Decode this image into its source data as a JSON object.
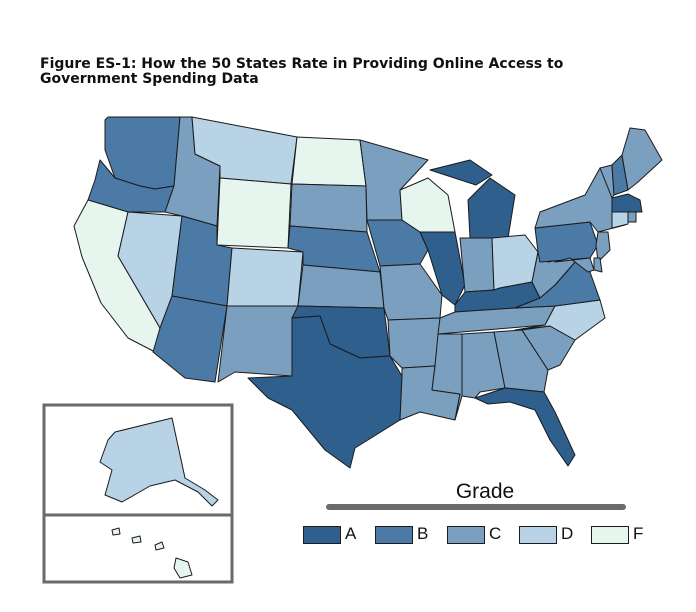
{
  "title": "Figure ES-1: How the 50 States Rate in Providing Online Access to Government Spending Data",
  "legend": {
    "title": "Grade",
    "items": [
      {
        "grade": "A",
        "label": "A",
        "color": "#2f5f8c"
      },
      {
        "grade": "B",
        "label": "B",
        "color": "#4b7aa6"
      },
      {
        "grade": "C",
        "label": "C",
        "color": "#7a9fbf"
      },
      {
        "grade": "D",
        "label": "D",
        "color": "#b8d2e6"
      },
      {
        "grade": "F",
        "label": "F",
        "color": "#e6f6ef"
      }
    ]
  },
  "states": {
    "WA": "B",
    "OR": "B",
    "CA": "F",
    "NV": "D",
    "ID": "C",
    "MT": "D",
    "WY": "F",
    "UT": "B",
    "AZ": "B",
    "CO": "D",
    "NM": "C",
    "ND": "F",
    "SD": "C",
    "NE": "B",
    "KS": "C",
    "OK": "A",
    "TX": "A",
    "MN": "C",
    "IA": "B",
    "MO": "C",
    "AR": "C",
    "LA": "C",
    "WI": "F",
    "IL": "A",
    "MI": "A",
    "IN": "C",
    "OH": "D",
    "KY": "A",
    "TN": "C",
    "MS": "C",
    "AL": "C",
    "GA": "C",
    "FL": "A",
    "SC": "C",
    "NC": "D",
    "VA": "B",
    "WV": "C",
    "PA": "B",
    "NY": "C",
    "VT": "C",
    "NH": "B",
    "ME": "C",
    "MA": "A",
    "RI": "C",
    "CT": "D",
    "NJ": "C",
    "DE": "C",
    "MD": "C",
    "AK": "D",
    "HI": "F"
  }
}
